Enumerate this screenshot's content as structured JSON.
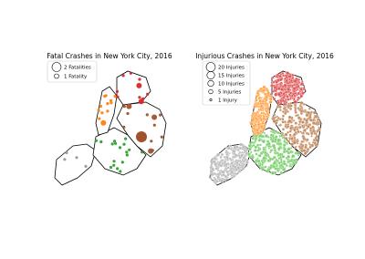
{
  "panels": [
    {
      "title": "Fatal Crashes in New York City, 2016",
      "legend": [
        "2 Fatalities",
        "1 Fatality"
      ]
    },
    {
      "title": "Injurious Crashes in New York City, 2016",
      "legend": [
        "20 Injuries",
        "15 Injuries",
        "10 Injuries",
        "5 Injuries",
        "1 Injury"
      ]
    }
  ]
}
